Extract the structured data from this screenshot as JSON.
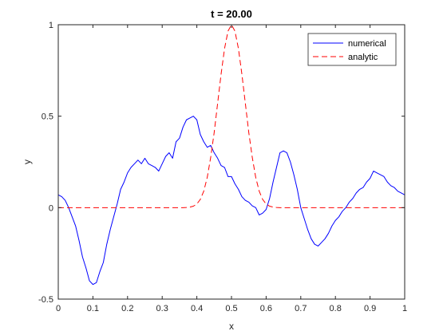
{
  "chart_data": {
    "type": "line",
    "title": "t = 20.00",
    "xlabel": "x",
    "ylabel": "y",
    "xlim": [
      0,
      1
    ],
    "ylim": [
      -0.5,
      1
    ],
    "xticks": [
      0,
      0.1,
      0.2,
      0.3,
      0.4,
      0.5,
      0.6,
      0.7,
      0.8,
      0.9,
      1
    ],
    "xtick_labels": [
      "0",
      "0.1",
      "0.2",
      "0.3",
      "0.4",
      "0.5",
      "0.6",
      "0.7",
      "0.8",
      "0.9",
      "1"
    ],
    "yticks": [
      -0.5,
      0,
      0.5,
      1
    ],
    "ytick_labels": [
      "-0.5",
      "0",
      "0.5",
      "1"
    ],
    "grid": false,
    "legend_position": "top-right",
    "series": [
      {
        "name": "numerical",
        "color": "#0000ff",
        "style": "solid",
        "x": [
          0,
          0.01,
          0.02,
          0.03,
          0.04,
          0.05,
          0.06,
          0.07,
          0.08,
          0.09,
          0.1,
          0.11,
          0.12,
          0.13,
          0.14,
          0.15,
          0.16,
          0.17,
          0.18,
          0.19,
          0.2,
          0.21,
          0.22,
          0.23,
          0.24,
          0.25,
          0.26,
          0.27,
          0.28,
          0.29,
          0.3,
          0.31,
          0.32,
          0.33,
          0.34,
          0.35,
          0.36,
          0.37,
          0.38,
          0.39,
          0.4,
          0.41,
          0.42,
          0.43,
          0.44,
          0.45,
          0.46,
          0.47,
          0.48,
          0.49,
          0.5,
          0.51,
          0.52,
          0.53,
          0.54,
          0.55,
          0.56,
          0.57,
          0.58,
          0.59,
          0.6,
          0.61,
          0.62,
          0.63,
          0.64,
          0.65,
          0.66,
          0.67,
          0.68,
          0.69,
          0.7,
          0.71,
          0.72,
          0.73,
          0.74,
          0.75,
          0.76,
          0.77,
          0.78,
          0.79,
          0.8,
          0.81,
          0.82,
          0.83,
          0.84,
          0.85,
          0.86,
          0.87,
          0.88,
          0.89,
          0.9,
          0.91,
          0.92,
          0.93,
          0.94,
          0.95,
          0.96,
          0.97,
          0.98,
          0.99,
          1
        ],
        "y": [
          0.07,
          0.06,
          0.04,
          0.0,
          -0.05,
          -0.1,
          -0.18,
          -0.27,
          -0.33,
          -0.4,
          -0.42,
          -0.41,
          -0.35,
          -0.3,
          -0.2,
          -0.12,
          -0.05,
          0.02,
          0.1,
          0.14,
          0.19,
          0.22,
          0.24,
          0.26,
          0.24,
          0.27,
          0.24,
          0.23,
          0.22,
          0.2,
          0.24,
          0.28,
          0.3,
          0.27,
          0.36,
          0.38,
          0.44,
          0.48,
          0.49,
          0.5,
          0.48,
          0.4,
          0.36,
          0.33,
          0.34,
          0.3,
          0.27,
          0.23,
          0.22,
          0.17,
          0.17,
          0.13,
          0.1,
          0.06,
          0.04,
          0.03,
          0.01,
          0.0,
          -0.04,
          -0.03,
          -0.01,
          0.05,
          0.14,
          0.22,
          0.3,
          0.31,
          0.3,
          0.25,
          0.18,
          0.1,
          0.0,
          -0.06,
          -0.12,
          -0.17,
          -0.2,
          -0.21,
          -0.19,
          -0.17,
          -0.14,
          -0.1,
          -0.07,
          -0.05,
          -0.02,
          0.0,
          0.03,
          0.05,
          0.08,
          0.1,
          0.11,
          0.14,
          0.16,
          0.2,
          0.19,
          0.18,
          0.17,
          0.14,
          0.12,
          0.11,
          0.09,
          0.08,
          0.07
        ]
      },
      {
        "name": "analytic",
        "color": "#ff0000",
        "style": "dashed",
        "x": [
          0,
          0.36,
          0.37,
          0.38,
          0.39,
          0.4,
          0.41,
          0.42,
          0.43,
          0.44,
          0.45,
          0.46,
          0.47,
          0.48,
          0.49,
          0.5,
          0.51,
          0.52,
          0.53,
          0.54,
          0.55,
          0.56,
          0.57,
          0.58,
          0.59,
          0.6,
          0.61,
          0.62,
          0.63,
          0.64,
          1
        ],
        "y": [
          0,
          0.0,
          0.001,
          0.003,
          0.008,
          0.02,
          0.045,
          0.09,
          0.165,
          0.275,
          0.41,
          0.57,
          0.73,
          0.87,
          0.965,
          1.0,
          0.965,
          0.87,
          0.73,
          0.57,
          0.41,
          0.275,
          0.165,
          0.09,
          0.045,
          0.02,
          0.008,
          0.003,
          0.001,
          0.0,
          0
        ]
      }
    ]
  }
}
